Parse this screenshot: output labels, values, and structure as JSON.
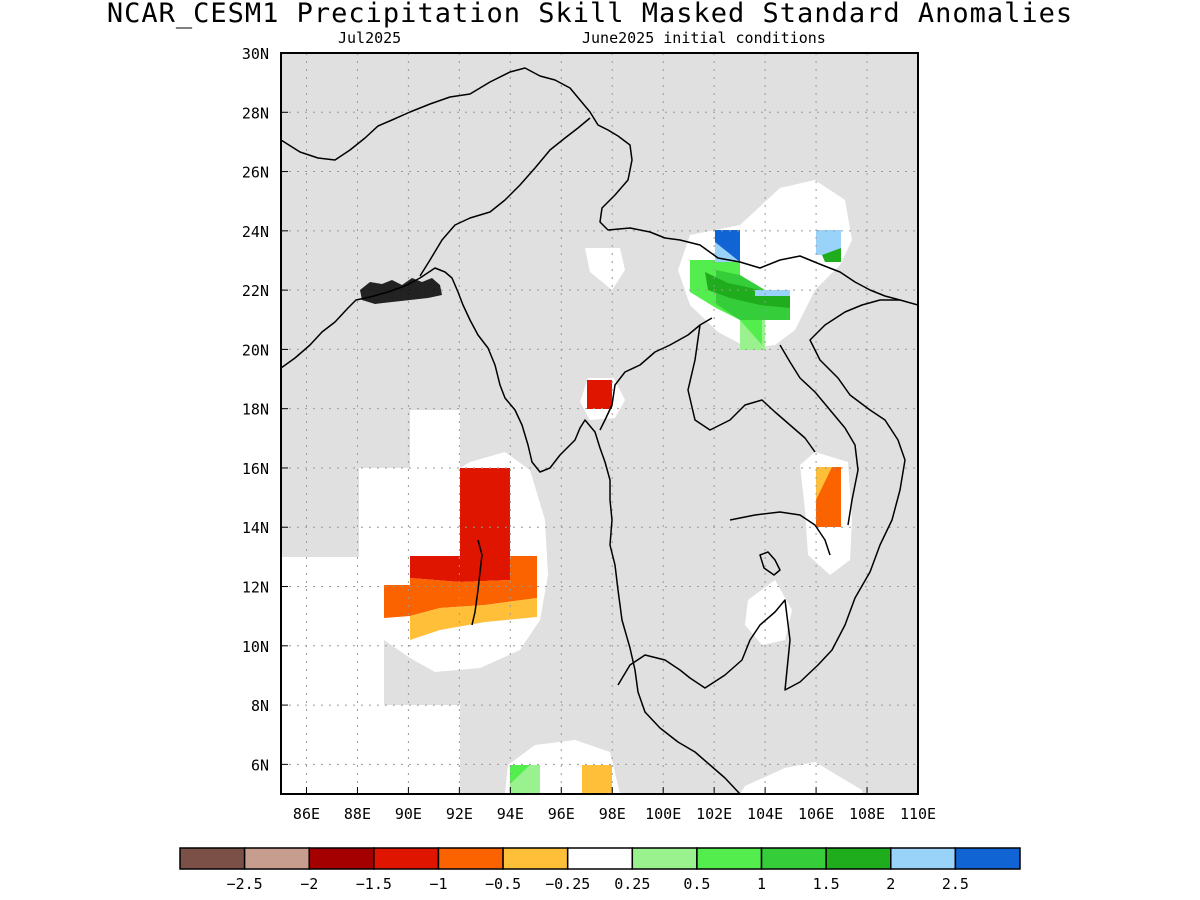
{
  "title": "NCAR_CESM1 Precipitation Skill Masked Standard Anomalies",
  "subtitle_left": "Jul2025",
  "subtitle_right": "June2025 initial conditions",
  "colors": {
    "background": "#e0e0e0",
    "grid": "#9a9a9a",
    "coast": "#000000"
  },
  "map": {
    "lon_range": [
      85,
      110
    ],
    "lat_range": [
      5,
      30
    ],
    "lon_ticks": [
      "86E",
      "88E",
      "90E",
      "92E",
      "94E",
      "96E",
      "98E",
      "100E",
      "102E",
      "104E",
      "106E",
      "108E",
      "110E"
    ],
    "lat_ticks": [
      "6N",
      "8N",
      "10N",
      "12N",
      "14N",
      "16N",
      "18N",
      "20N",
      "22N",
      "24N",
      "26N",
      "28N",
      "30N"
    ]
  },
  "colorbar": {
    "colors": [
      "#7b5147",
      "#c79d8f",
      "#a40000",
      "#e01500",
      "#fb6300",
      "#ffbf39",
      "#ffffff",
      "#9af28f",
      "#53ee4d",
      "#36cd3a",
      "#1fac1d",
      "#99d3f9",
      "#1164d3"
    ],
    "labels": [
      "−2.5",
      "−2",
      "−1.5",
      "−1",
      "−0.5",
      "−0.25",
      "0.25",
      "0.5",
      "1",
      "1.5",
      "2",
      "2.5"
    ]
  }
}
